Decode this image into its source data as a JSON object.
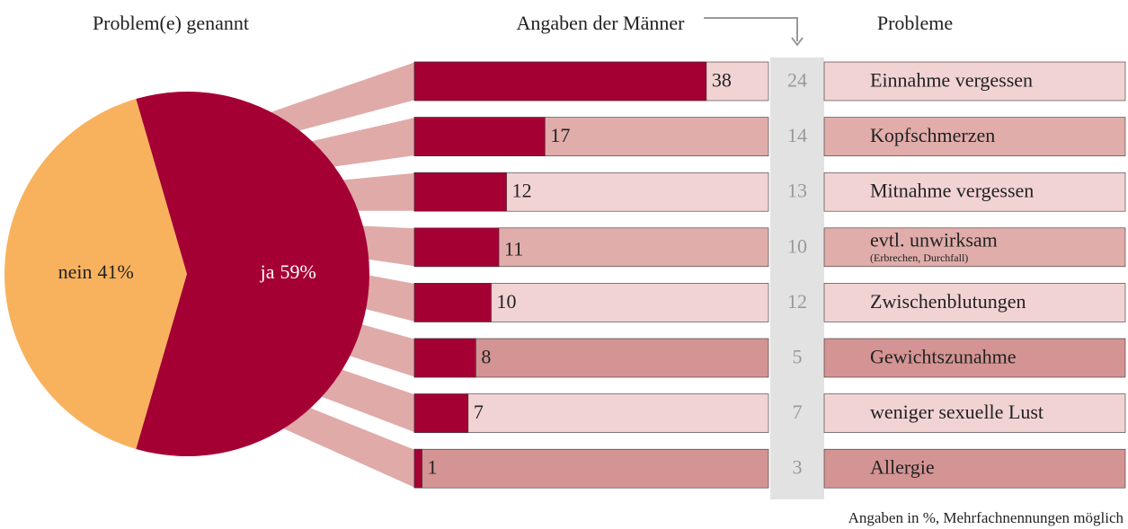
{
  "chart_data": [
    {
      "type": "pie",
      "title": "Problem(e) genannt",
      "categories": [
        "nein",
        "ja"
      ],
      "values": [
        41,
        59
      ],
      "value_labels": [
        "41%",
        "59%"
      ],
      "colors": [
        "#f8b25e",
        "#a50034"
      ]
    },
    {
      "type": "barh",
      "category_label": "Probleme",
      "categories": [
        "Einnahme vergessen",
        "Kopfschmerzen",
        "Mitnahme vergessen",
        "evtl. unwirksam",
        "Zwischenblutungen",
        "Gewichtszunahme",
        "weniger sexuelle Lust",
        "Allergie"
      ],
      "series": [
        {
          "values": [
            38,
            17,
            12,
            11,
            10,
            8,
            7,
            1
          ],
          "color": "#a50034"
        },
        {
          "name": "Angaben der Männer",
          "values": [
            24,
            14,
            13,
            10,
            12,
            5,
            7,
            3
          ],
          "color": "#999999"
        }
      ],
      "annotations": [
        "(Erbrechen, Durchfall)",
        "Angaben in %, Mehrfachnennungen möglich"
      ]
    }
  ]
}
